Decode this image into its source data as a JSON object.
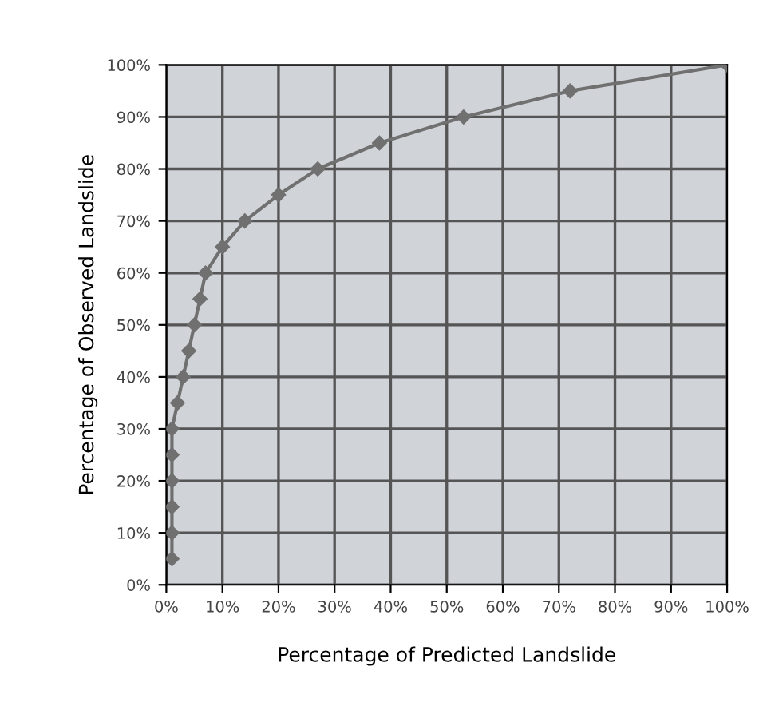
{
  "chart_data": {
    "type": "line",
    "xlabel": "Percentage of Predicted Landslide",
    "ylabel": "Percentage of Observed Landslide",
    "x": [
      1,
      1,
      1,
      1,
      1,
      1,
      2,
      3,
      4,
      5,
      6,
      7,
      10,
      14,
      20,
      27,
      38,
      53,
      72,
      100
    ],
    "series": [
      {
        "color": "#707070",
        "values": [
          5,
          10,
          15,
          20,
          25,
          30,
          35,
          40,
          45,
          50,
          55,
          60,
          65,
          70,
          75,
          80,
          85,
          90,
          95,
          100
        ]
      }
    ],
    "xlim": [
      0,
      100
    ],
    "ylim": [
      0,
      100
    ],
    "xticks": [
      {
        "value": 0,
        "label": "0%"
      },
      {
        "value": 10,
        "label": "10%"
      },
      {
        "value": 20,
        "label": "20%"
      },
      {
        "value": 30,
        "label": "30%"
      },
      {
        "value": 40,
        "label": "40%"
      },
      {
        "value": 50,
        "label": "50%"
      },
      {
        "value": 60,
        "label": "60%"
      },
      {
        "value": 70,
        "label": "70%"
      },
      {
        "value": 80,
        "label": "80%"
      },
      {
        "value": 90,
        "label": "90%"
      },
      {
        "value": 100,
        "label": "100%"
      }
    ],
    "yticks": [
      {
        "value": 0,
        "label": "0%"
      },
      {
        "value": 10,
        "label": "10%"
      },
      {
        "value": 20,
        "label": "20%"
      },
      {
        "value": 30,
        "label": "30%"
      },
      {
        "value": 40,
        "label": "40%"
      },
      {
        "value": 50,
        "label": "50%"
      },
      {
        "value": 60,
        "label": "60%"
      },
      {
        "value": 70,
        "label": "70%"
      },
      {
        "value": 80,
        "label": "80%"
      },
      {
        "value": 90,
        "label": "90%"
      },
      {
        "value": 100,
        "label": "100%"
      }
    ],
    "grid": true,
    "marker": "diamond",
    "line_style": "solid"
  }
}
